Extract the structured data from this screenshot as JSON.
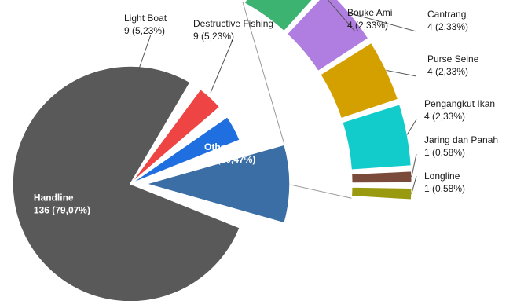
{
  "chart_data": {
    "type": "pie",
    "title": "",
    "main_slices": [
      {
        "label": "Handline",
        "text": "136 (79,07%)",
        "value": 136,
        "percent": 79.07,
        "color": "#595959"
      },
      {
        "label": "Light Boat",
        "text": "9 (5,23%)",
        "value": 9,
        "percent": 5.23,
        "color": "#ef4444"
      },
      {
        "label": "Destructive Fishing",
        "text": "9 (5,23%)",
        "value": 9,
        "percent": 5.23,
        "color": "#1f6fe0"
      },
      {
        "label": "Other",
        "text": "18 (10,47%)",
        "value": 18,
        "percent": 10.47,
        "color": "#3a6ea5"
      }
    ],
    "other_breakdown": [
      {
        "label": "Bouke Ami",
        "text": "4 (2,33%)",
        "value": 4,
        "percent": 2.33,
        "color": "#3cb371"
      },
      {
        "label": "Cantrang",
        "text": "4 (2,33%)",
        "value": 4,
        "percent": 2.33,
        "color": "#b07ee0"
      },
      {
        "label": "Purse Seine",
        "text": "4 (2,33%)",
        "value": 4,
        "percent": 2.33,
        "color": "#d4a000"
      },
      {
        "label": "Pengangkut Ikan",
        "text": "4 (2,33%)",
        "value": 4,
        "percent": 2.33,
        "color": "#12cccc"
      },
      {
        "label": "Jaring dan Panah",
        "text": "1 (0,58%)",
        "value": 1,
        "percent": 0.58,
        "color": "#7a4a3a"
      },
      {
        "label": "Longline",
        "text": "1 (0,58%)",
        "value": 1,
        "percent": 0.58,
        "color": "#9a9a10"
      }
    ],
    "legend": "none"
  }
}
